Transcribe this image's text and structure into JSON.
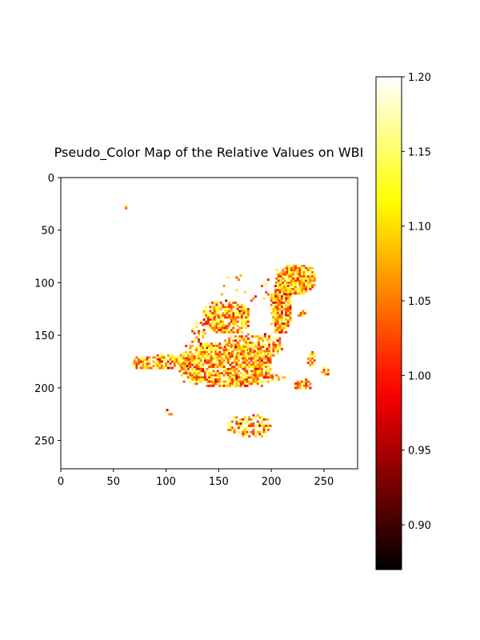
{
  "chart_data": {
    "type": "heatmap",
    "title": "Pseudo_Color Map of the Relative Values on WBI",
    "xlabel": "",
    "ylabel": "",
    "image_shape": [
      277,
      282
    ],
    "xlim": [
      0,
      282
    ],
    "ylim": [
      277,
      0
    ],
    "x_ticks": [
      0,
      50,
      100,
      150,
      200,
      250
    ],
    "y_ticks": [
      0,
      50,
      100,
      150,
      200,
      250
    ],
    "colormap": "hot",
    "colorbar": {
      "vmin": 0.87,
      "vmax": 1.2,
      "ticks": [
        "0.90",
        "0.95",
        "1.00",
        "1.05",
        "1.10",
        "1.15",
        "1.20"
      ],
      "stops": [
        "#000000",
        "#ff0000",
        "#ffff00",
        "#ffffff"
      ],
      "placement": "right"
    },
    "background": "#ffffff",
    "regions": [
      {
        "name": "speck",
        "x": [
          59,
          62
        ],
        "y": [
          26,
          29
        ],
        "density": 0.8
      },
      {
        "name": "upper-right-lobe",
        "x": [
          204,
          242
        ],
        "y": [
          83,
          110
        ],
        "density": 0.85
      },
      {
        "name": "right-column",
        "x": [
          199,
          218
        ],
        "y": [
          100,
          148
        ],
        "density": 0.85
      },
      {
        "name": "upper-left-lobe",
        "x": [
          135,
          178
        ],
        "y": [
          118,
          148
        ],
        "density": 0.8
      },
      {
        "name": "left-fringe",
        "x": [
          122,
          140
        ],
        "y": [
          137,
          160
        ],
        "density": 0.35
      },
      {
        "name": "central-band",
        "x": [
          112,
          200
        ],
        "y": [
          157,
          198
        ],
        "density": 0.8
      },
      {
        "name": "central-band-upper",
        "x": [
          155,
          210
        ],
        "y": [
          148,
          170
        ],
        "density": 0.6
      },
      {
        "name": "left-tail",
        "x": [
          67,
          122
        ],
        "y": [
          168,
          182
        ],
        "density": 0.7
      },
      {
        "name": "small-right-1",
        "x": [
          234,
          241
        ],
        "y": [
          165,
          178
        ],
        "density": 0.9
      },
      {
        "name": "small-right-2",
        "x": [
          247,
          254
        ],
        "y": [
          180,
          187
        ],
        "density": 0.9
      },
      {
        "name": "small-right-3",
        "x": [
          222,
          238
        ],
        "y": [
          191,
          201
        ],
        "density": 0.8
      },
      {
        "name": "small-right-4",
        "x": [
          225,
          233
        ],
        "y": [
          126,
          132
        ],
        "density": 0.8
      },
      {
        "name": "mid-spots",
        "x": [
          176,
          215
        ],
        "y": [
          183,
          195
        ],
        "density": 0.4
      },
      {
        "name": "lower-lefts",
        "x": [
          98,
          105
        ],
        "y": [
          220,
          225
        ],
        "density": 0.5
      },
      {
        "name": "lower-cluster",
        "x": [
          158,
          200
        ],
        "y": [
          225,
          247
        ],
        "density": 0.45
      },
      {
        "name": "upper-scatter",
        "x": [
          150,
          200
        ],
        "y": [
          90,
          118
        ],
        "density": 0.08
      }
    ]
  }
}
